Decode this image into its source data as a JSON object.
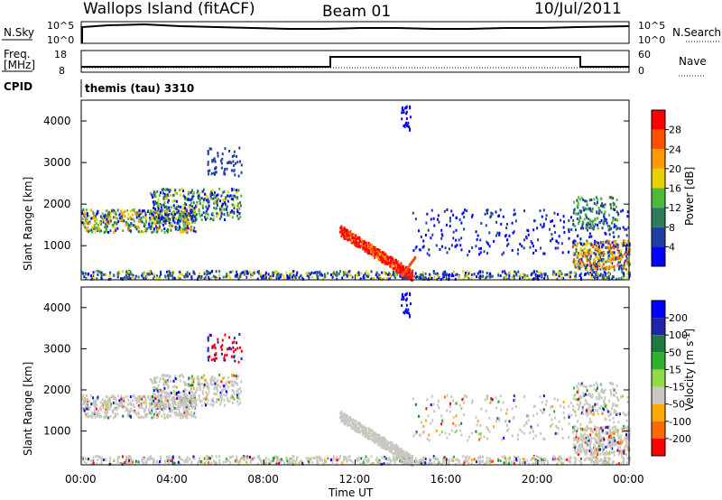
{
  "header": {
    "site": "Wallops Island (fitACF)",
    "beam": "Beam 01",
    "date": "10/Jul/2011"
  },
  "status_panels": {
    "nsky_label": "N.Sky",
    "nsearch_label": "N.Search",
    "noise_ticks_left": [
      "10^5",
      "10^0"
    ],
    "noise_ticks_right": [
      "10^5",
      "10^0"
    ],
    "freq_label_top": "Freq.",
    "freq_label_unit": "[MHz]",
    "freq_ticks": [
      "18",
      "8"
    ],
    "nave_label": "Nave",
    "nave_ticks": [
      "60",
      "0"
    ],
    "cpid_label": "CPID",
    "cpid_value": "themis (tau) 3310"
  },
  "legends": {
    "power_label": "Power [dB]",
    "power_ticks": [
      "28",
      "24",
      "20",
      "16",
      "12",
      "8",
      "4"
    ],
    "power_colors": [
      "#0000ff",
      "#1f3fa0",
      "#2e7d5a",
      "#4dbb3a",
      "#e8d000",
      "#ff9a00",
      "#ff5000",
      "#ff0000"
    ],
    "velocity_label_prefix": "Velocity [m s",
    "velocity_label_sup": "-1",
    "velocity_label_suffix": "]",
    "velocity_ticks": [
      "200",
      "100",
      "50",
      "15",
      "-15",
      "-50",
      "-100",
      "-200"
    ],
    "velocity_colors": [
      "#ff0000",
      "#ff6a00",
      "#ffaa00",
      "#c8c8c0",
      "#8fdc48",
      "#2fb32f",
      "#1e7a3a",
      "#2222aa",
      "#0000ff"
    ]
  },
  "chart_data": [
    {
      "type": "heatmap",
      "name": "power",
      "ylabel": "Slant Range [km]",
      "yticks": [
        "1000",
        "2000",
        "3000",
        "4000"
      ],
      "ylim": [
        180,
        4500
      ],
      "xlim_hours": [
        0,
        24
      ],
      "features": [
        {
          "x": [
            0,
            7
          ],
          "y_range_km": [
            1250,
            2400
          ],
          "level": "medium"
        },
        {
          "x": [
            12,
            14.5
          ],
          "y_range_km": [
            250,
            1500
          ],
          "level": "high"
        },
        {
          "x": [
            21.5,
            24
          ],
          "y_range_km": [
            400,
            1200
          ],
          "level": "medium"
        }
      ]
    },
    {
      "type": "heatmap",
      "name": "velocity",
      "xlabel": "Time UT",
      "xticks": [
        "00:00",
        "04:00",
        "08:00",
        "12:00",
        "16:00",
        "20:00",
        "00:00"
      ],
      "ylabel": "Slant Range [km]",
      "yticks": [
        "1000",
        "2000",
        "3000",
        "4000"
      ],
      "ylim": [
        180,
        4500
      ],
      "xlim_hours": [
        0,
        24
      ]
    }
  ]
}
